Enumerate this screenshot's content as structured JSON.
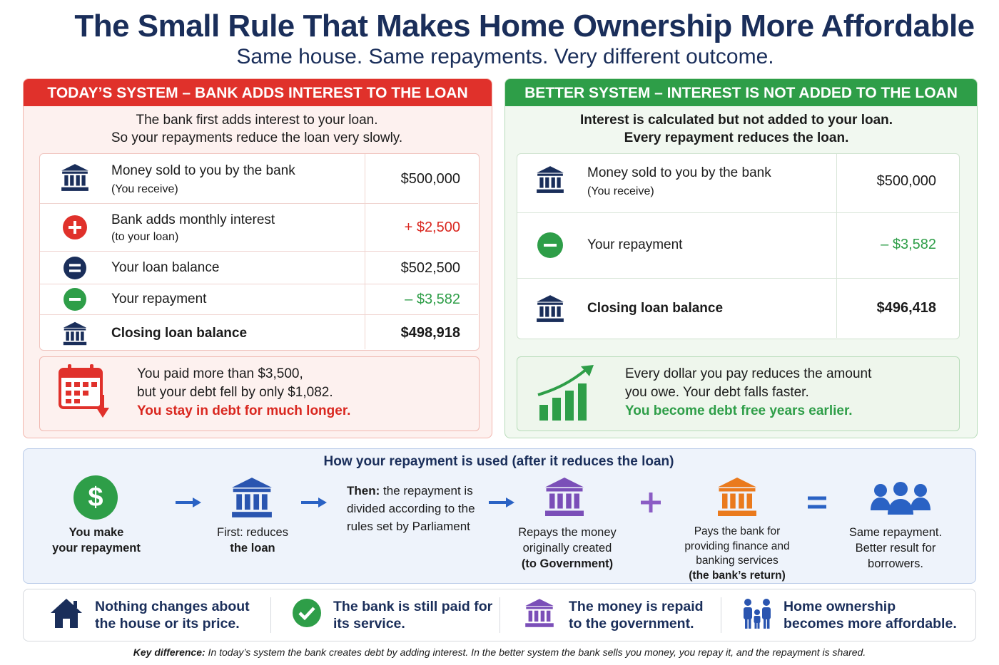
{
  "header": {
    "title": "The Small Rule That Makes Home Ownership More Affordable",
    "subtitle": "Same house. Same repayments. Very different outcome."
  },
  "today": {
    "heading": "TODAY’S SYSTEM – BANK ADDS INTEREST TO THE LOAN",
    "intro": [
      "The bank first adds interest to your loan.",
      "So your repayments reduce the loan very slowly."
    ],
    "rows": [
      {
        "label": "Money sold to you by the bank",
        "note": "(You receive)",
        "amount": "$500,000"
      },
      {
        "label": "Bank adds monthly interest",
        "note": "(to your loan)",
        "amount": "+ $2,500"
      },
      {
        "label": "Your loan balance",
        "amount": "$502,500"
      },
      {
        "label": "Your repayment",
        "amount": "– $3,582"
      },
      {
        "label": "Closing loan balance",
        "amount": "$498,918"
      }
    ],
    "callout": [
      "You paid more than $3,500,",
      "but your debt fell by only $1,082.",
      "You stay in debt for much longer."
    ]
  },
  "better": {
    "heading": "BETTER SYSTEM – INTEREST IS NOT ADDED TO THE LOAN",
    "intro": [
      "Interest is calculated but not added to your loan.",
      "Every repayment reduces the loan."
    ],
    "rows": [
      {
        "label": "Money sold to you by the bank",
        "note": "(You receive)",
        "amount": "$500,000"
      },
      {
        "label": "Your repayment",
        "amount": "– $3,582"
      },
      {
        "label": "Closing loan balance",
        "amount": "$496,418"
      }
    ],
    "callout": [
      "Every dollar you pay reduces the amount",
      "you owe. Your debt falls faster.",
      "You become debt free years earlier."
    ]
  },
  "flow": {
    "title": "How your repayment is used (after it reduces the loan)",
    "steps": [
      [
        "You make",
        "your repayment"
      ],
      [
        "First: reduces",
        "the loan"
      ],
      [
        "Then:",
        "the repayment is divided according to the rules set by Parliament"
      ],
      [
        "Repays the money originally created",
        "(to Government)"
      ],
      [
        "Pays the bank for providing finance and banking services",
        "(the bank’s return)"
      ],
      [
        "Same repayment. Better result for borrowers."
      ]
    ]
  },
  "footer": {
    "points": [
      [
        "Nothing changes about",
        "the house or its price."
      ],
      [
        "The bank is still paid for",
        "its service."
      ],
      [
        "The money is repaid",
        "to the government."
      ],
      [
        "Home ownership",
        "becomes more affordable."
      ]
    ],
    "key": {
      "label": "Key difference:",
      "text": " In today’s system the bank creates debt by adding interest. In the better system the bank sells you money, you repay it, and the repayment is shared."
    }
  }
}
